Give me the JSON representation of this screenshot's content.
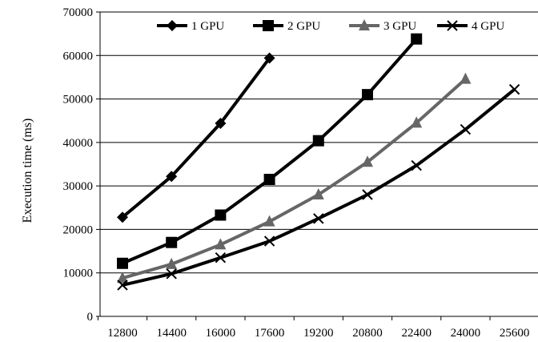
{
  "chart_data": {
    "type": "line",
    "ylabel": "Execution time (ms)",
    "xlabel": "",
    "x": [
      12800,
      14400,
      16000,
      17600,
      19200,
      20800,
      22400,
      24000,
      25600
    ],
    "xtick_labels": [
      "12800",
      "14400",
      "16000",
      "17600",
      "19200",
      "20800",
      "22400",
      "24000",
      "25600"
    ],
    "ylim": [
      0,
      70000
    ],
    "yticks": [
      0,
      10000,
      20000,
      30000,
      40000,
      50000,
      60000,
      70000
    ],
    "ytick_labels": [
      "0",
      "10000",
      "20000",
      "30000",
      "40000",
      "50000",
      "60000",
      "70000"
    ],
    "grid": "horizontal",
    "legend_position": "top",
    "series": [
      {
        "name": "1 GPU",
        "marker": "diamond",
        "color": "#000000",
        "x": [
          12800,
          14400,
          16000,
          17600
        ],
        "values": [
          22800,
          32200,
          44400,
          59400
        ]
      },
      {
        "name": "2 GPU",
        "marker": "square",
        "color": "#000000",
        "x": [
          12800,
          14400,
          16000,
          17600,
          19200,
          20800,
          22400
        ],
        "values": [
          12200,
          17000,
          23300,
          31500,
          40400,
          51000,
          63800
        ]
      },
      {
        "name": "3 GPU",
        "marker": "triangle",
        "color": "#666666",
        "x": [
          12800,
          14400,
          16000,
          17600,
          19200,
          20800,
          22400,
          24000
        ],
        "values": [
          8800,
          12000,
          16500,
          21800,
          28000,
          35500,
          44500,
          54600
        ]
      },
      {
        "name": "4 GPU",
        "marker": "x",
        "color": "#000000",
        "x": [
          12800,
          14400,
          16000,
          17600,
          19200,
          20800,
          22400,
          24000,
          25600
        ],
        "values": [
          7200,
          9800,
          13500,
          17300,
          22500,
          28000,
          34700,
          43000,
          52200
        ]
      }
    ]
  }
}
